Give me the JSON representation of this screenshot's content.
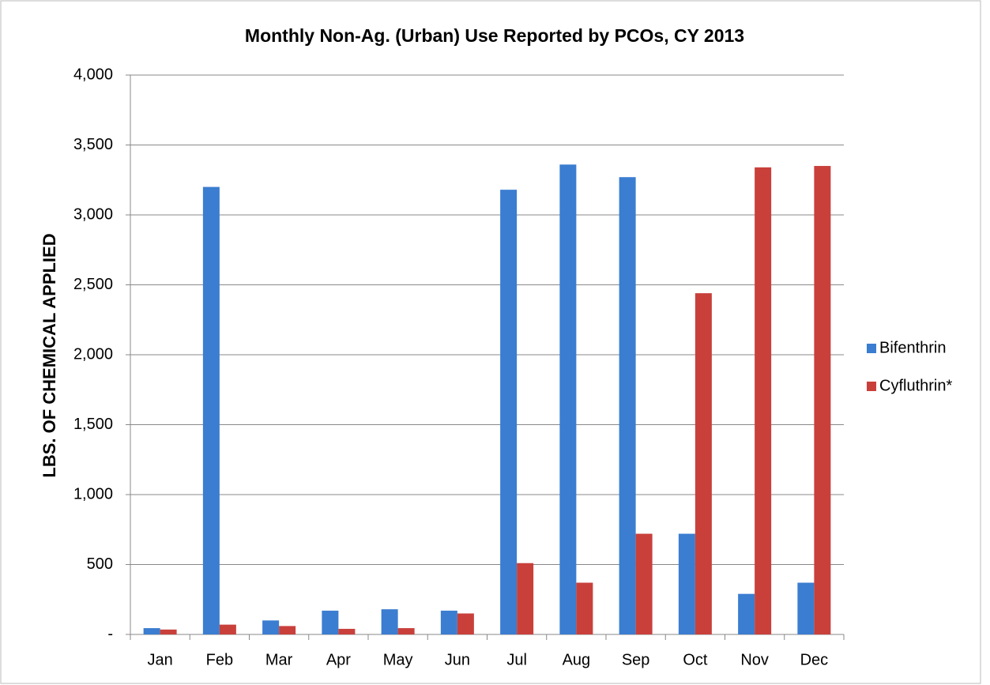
{
  "chart_data": {
    "type": "bar",
    "title": "Monthly Non-Ag. (Urban) Use Reported by PCOs, CY 2013",
    "y_label": "LBS. OF CHEMICAL APPLIED",
    "categories": [
      "Jan",
      "Feb",
      "Mar",
      "Apr",
      "May",
      "Jun",
      "Jul",
      "Aug",
      "Sep",
      "Oct",
      "Nov",
      "Dec"
    ],
    "series": [
      {
        "name": "Bifenthrin",
        "color": "#3b7dd0",
        "values": [
          45,
          3200,
          100,
          170,
          180,
          170,
          3180,
          3360,
          3270,
          720,
          290,
          370
        ]
      },
      {
        "name": "Cyfluthrin*",
        "color": "#c9403b",
        "values": [
          35,
          70,
          60,
          40,
          45,
          150,
          510,
          370,
          720,
          2440,
          3340,
          3350
        ]
      }
    ],
    "ylim": [
      0,
      4000
    ],
    "yticks": [
      {
        "value": 0,
        "label": "-"
      },
      500,
      {
        "value": 1000,
        "label": "1,000"
      },
      {
        "value": 1500,
        "label": "1,500"
      },
      {
        "value": 2000,
        "label": "2,000"
      },
      {
        "value": 2500,
        "label": "2,500"
      },
      {
        "value": 3000,
        "label": "3,000"
      },
      {
        "value": 3500,
        "label": "3,500"
      },
      {
        "value": 4000,
        "label": "4,000"
      }
    ],
    "grid": true,
    "legend": "right"
  }
}
